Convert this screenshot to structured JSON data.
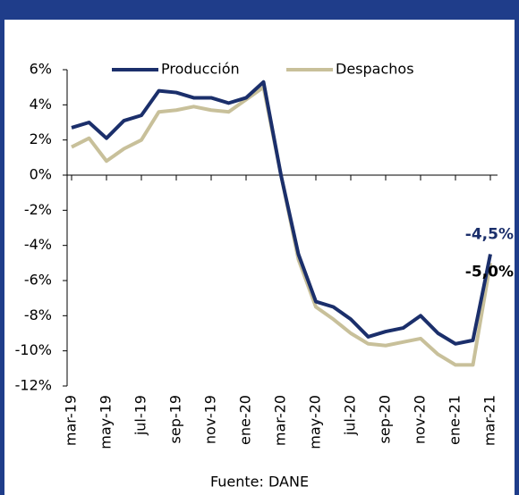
{
  "chart_data": {
    "type": "line",
    "categories": [
      "mar-19",
      null,
      "may-19",
      null,
      "jul-19",
      null,
      "sep-19",
      null,
      "nov-19",
      null,
      "ene-20",
      null,
      "mar-20",
      null,
      "may-20",
      null,
      "jul-20",
      null,
      "sep-20",
      null,
      "nov-20",
      null,
      "ene-21",
      null,
      "mar-21"
    ],
    "series": [
      {
        "name": "Producción",
        "color": "#1b2f6b",
        "values": [
          2.7,
          3.0,
          2.1,
          3.1,
          3.4,
          4.8,
          4.7,
          4.4,
          4.4,
          4.1,
          4.4,
          5.3,
          0.0,
          -4.5,
          -7.2,
          -7.5,
          -8.2,
          -9.2,
          -8.9,
          -8.7,
          -8.0,
          -9.0,
          -9.6,
          -9.4,
          -4.5
        ],
        "value_labels": [
          null,
          null,
          null,
          null,
          null,
          null,
          null,
          null,
          null,
          null,
          null,
          null,
          null,
          null,
          null,
          null,
          null,
          null,
          null,
          null,
          null,
          null,
          null,
          null,
          "-4,5%"
        ]
      },
      {
        "name": "Despachos",
        "color": "#c8c09a",
        "values": [
          1.6,
          2.1,
          0.8,
          1.5,
          2.0,
          3.6,
          3.7,
          3.9,
          3.7,
          3.6,
          4.3,
          5.0,
          0.0,
          -4.8,
          -7.5,
          -8.2,
          -9.0,
          -9.6,
          -9.7,
          -9.5,
          -9.3,
          -10.2,
          -10.8,
          -10.8,
          -5.0
        ],
        "value_labels": [
          null,
          null,
          null,
          null,
          null,
          null,
          null,
          null,
          null,
          null,
          null,
          null,
          null,
          null,
          null,
          null,
          null,
          null,
          null,
          null,
          null,
          null,
          null,
          null,
          "-5,0%"
        ]
      }
    ],
    "ylim": [
      -12,
      6
    ],
    "yticks": [
      {
        "value": -12,
        "label": "-12%"
      },
      {
        "value": -10,
        "label": "-10%"
      },
      {
        "value": -8,
        "label": "-8%"
      },
      {
        "value": -6,
        "label": "-6%"
      },
      {
        "value": -4,
        "label": "-4%"
      },
      {
        "value": -2,
        "label": "-2%"
      },
      {
        "value": 0,
        "label": "0%"
      },
      {
        "value": 2,
        "label": "2%"
      },
      {
        "value": 4,
        "label": "4%"
      },
      {
        "value": 6,
        "label": "6%"
      }
    ],
    "legend": "top",
    "source": "Fuente: DANE"
  }
}
